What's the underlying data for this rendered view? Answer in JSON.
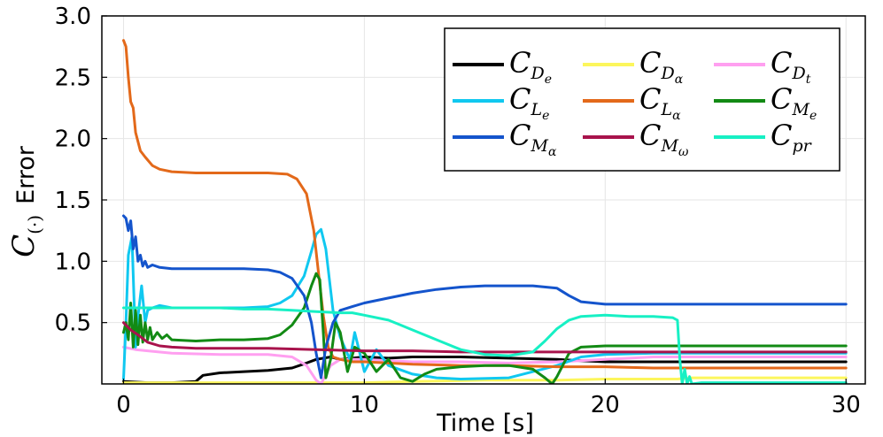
{
  "chart_data": {
    "type": "line",
    "xlabel": "Time [s]",
    "ylabel": "Error",
    "ylabel_symbol": {
      "base": "C",
      "sub": "(·)"
    },
    "xlim": [
      -0.9,
      30.8
    ],
    "ylim": [
      0,
      3.0
    ],
    "xticks": [
      {
        "v": 0,
        "label": "0"
      },
      {
        "v": 10,
        "label": "10"
      },
      {
        "v": 20,
        "label": "20"
      },
      {
        "v": 30,
        "label": "30"
      }
    ],
    "yticks": [
      {
        "v": 0.5,
        "label": "0.5"
      },
      {
        "v": 1.0,
        "label": "1.0"
      },
      {
        "v": 1.5,
        "label": "1.5"
      },
      {
        "v": 2.0,
        "label": "2.0"
      },
      {
        "v": 2.5,
        "label": "2.5"
      },
      {
        "v": 3.0,
        "label": "3.0"
      }
    ],
    "grid": true,
    "legend_position": "top-right",
    "legend_columns": 3,
    "series": [
      {
        "name": "C_De",
        "base": "C",
        "sub": "D",
        "subsub": "e",
        "color": "#000000",
        "points": [
          [
            0,
            0.02
          ],
          [
            1,
            0.01
          ],
          [
            2,
            0.01
          ],
          [
            3,
            0.02
          ],
          [
            3.3,
            0.07
          ],
          [
            4,
            0.09
          ],
          [
            5,
            0.1
          ],
          [
            6,
            0.11
          ],
          [
            7,
            0.13
          ],
          [
            7.6,
            0.17
          ],
          [
            8,
            0.2
          ],
          [
            8.6,
            0.22
          ],
          [
            9,
            0.2
          ],
          [
            10,
            0.22
          ],
          [
            11,
            0.21
          ],
          [
            12,
            0.22
          ],
          [
            14,
            0.22
          ],
          [
            16,
            0.21
          ],
          [
            18,
            0.2
          ],
          [
            19,
            0.19
          ],
          [
            20,
            0.18
          ],
          [
            22,
            0.18
          ],
          [
            25,
            0.18
          ],
          [
            30,
            0.18
          ]
        ]
      },
      {
        "name": "C_Dα",
        "base": "C",
        "sub": "D",
        "subsub": "α",
        "color": "#fcf65c",
        "points": [
          [
            0,
            0.01
          ],
          [
            5,
            0.01
          ],
          [
            10,
            0.01
          ],
          [
            12,
            0.02
          ],
          [
            15,
            0.03
          ],
          [
            18,
            0.03
          ],
          [
            20,
            0.04
          ],
          [
            23,
            0.04
          ],
          [
            23.5,
            0.05
          ],
          [
            25,
            0.05
          ],
          [
            30,
            0.05
          ]
        ]
      },
      {
        "name": "C_Dt",
        "base": "C",
        "sub": "D",
        "subsub": "t",
        "color": "#ff9ff0",
        "points": [
          [
            0,
            0.3
          ],
          [
            0.5,
            0.28
          ],
          [
            1,
            0.27
          ],
          [
            2,
            0.25
          ],
          [
            4,
            0.24
          ],
          [
            6,
            0.24
          ],
          [
            7,
            0.22
          ],
          [
            7.6,
            0.15
          ],
          [
            8,
            0.03
          ],
          [
            8.2,
            0.0
          ],
          [
            8.6,
            0.15
          ],
          [
            9,
            0.2
          ],
          [
            10,
            0.2
          ],
          [
            11,
            0.19
          ],
          [
            12,
            0.18
          ],
          [
            14,
            0.18
          ],
          [
            16,
            0.17
          ],
          [
            18,
            0.18
          ],
          [
            20,
            0.2
          ],
          [
            22,
            0.22
          ],
          [
            25,
            0.22
          ],
          [
            30,
            0.22
          ]
        ]
      },
      {
        "name": "C_Le",
        "base": "C",
        "sub": "L",
        "subsub": "e",
        "color": "#10c8f0",
        "points": [
          [
            0,
            0.04
          ],
          [
            0.1,
            0.5
          ],
          [
            0.2,
            1.05
          ],
          [
            0.35,
            1.2
          ],
          [
            0.5,
            0.3
          ],
          [
            0.6,
            0.55
          ],
          [
            0.75,
            0.8
          ],
          [
            0.9,
            0.5
          ],
          [
            1,
            0.6
          ],
          [
            1.2,
            0.62
          ],
          [
            1.5,
            0.64
          ],
          [
            2,
            0.62
          ],
          [
            3,
            0.62
          ],
          [
            4,
            0.62
          ],
          [
            5,
            0.62
          ],
          [
            6,
            0.63
          ],
          [
            6.5,
            0.66
          ],
          [
            7,
            0.72
          ],
          [
            7.5,
            0.88
          ],
          [
            7.8,
            1.08
          ],
          [
            8,
            1.22
          ],
          [
            8.2,
            1.26
          ],
          [
            8.4,
            1.1
          ],
          [
            8.7,
            0.6
          ],
          [
            9,
            0.38
          ],
          [
            9.4,
            0.2
          ],
          [
            9.6,
            0.42
          ],
          [
            10,
            0.1
          ],
          [
            10.5,
            0.28
          ],
          [
            11,
            0.15
          ],
          [
            12,
            0.08
          ],
          [
            13,
            0.05
          ],
          [
            14,
            0.04
          ],
          [
            16,
            0.05
          ],
          [
            18,
            0.15
          ],
          [
            19,
            0.22
          ],
          [
            20,
            0.24
          ],
          [
            22,
            0.25
          ],
          [
            25,
            0.25
          ],
          [
            30,
            0.25
          ]
        ]
      },
      {
        "name": "C_Lα",
        "base": "C",
        "sub": "L",
        "subsub": "α",
        "color": "#e3691a",
        "points": [
          [
            0,
            2.8
          ],
          [
            0.1,
            2.75
          ],
          [
            0.2,
            2.5
          ],
          [
            0.3,
            2.3
          ],
          [
            0.4,
            2.25
          ],
          [
            0.5,
            2.05
          ],
          [
            0.7,
            1.9
          ],
          [
            0.9,
            1.85
          ],
          [
            1.2,
            1.78
          ],
          [
            1.5,
            1.75
          ],
          [
            2,
            1.73
          ],
          [
            3,
            1.72
          ],
          [
            4,
            1.72
          ],
          [
            5,
            1.72
          ],
          [
            6,
            1.72
          ],
          [
            6.8,
            1.71
          ],
          [
            7.2,
            1.67
          ],
          [
            7.6,
            1.55
          ],
          [
            7.9,
            1.25
          ],
          [
            8.1,
            0.9
          ],
          [
            8.3,
            0.55
          ],
          [
            8.5,
            0.3
          ],
          [
            8.7,
            0.22
          ],
          [
            9,
            0.2
          ],
          [
            9.5,
            0.18
          ],
          [
            10,
            0.18
          ],
          [
            11,
            0.17
          ],
          [
            12,
            0.16
          ],
          [
            14,
            0.15
          ],
          [
            16,
            0.15
          ],
          [
            18,
            0.14
          ],
          [
            20,
            0.14
          ],
          [
            22,
            0.13
          ],
          [
            25,
            0.13
          ],
          [
            30,
            0.13
          ]
        ]
      },
      {
        "name": "C_Me",
        "base": "C",
        "sub": "M",
        "subsub": "e",
        "color": "#128a14",
        "points": [
          [
            0,
            0.42
          ],
          [
            0.1,
            0.5
          ],
          [
            0.2,
            0.36
          ],
          [
            0.3,
            0.66
          ],
          [
            0.4,
            0.3
          ],
          [
            0.5,
            0.6
          ],
          [
            0.6,
            0.32
          ],
          [
            0.7,
            0.56
          ],
          [
            0.8,
            0.34
          ],
          [
            0.9,
            0.5
          ],
          [
            1,
            0.36
          ],
          [
            1.1,
            0.46
          ],
          [
            1.2,
            0.36
          ],
          [
            1.4,
            0.42
          ],
          [
            1.6,
            0.37
          ],
          [
            1.8,
            0.4
          ],
          [
            2,
            0.36
          ],
          [
            3,
            0.35
          ],
          [
            4,
            0.36
          ],
          [
            5,
            0.36
          ],
          [
            6,
            0.37
          ],
          [
            6.5,
            0.4
          ],
          [
            7,
            0.48
          ],
          [
            7.5,
            0.62
          ],
          [
            7.8,
            0.8
          ],
          [
            8,
            0.9
          ],
          [
            8.15,
            0.85
          ],
          [
            8.3,
            0.4
          ],
          [
            8.4,
            0.05
          ],
          [
            8.6,
            0.2
          ],
          [
            8.8,
            0.5
          ],
          [
            9,
            0.42
          ],
          [
            9.3,
            0.1
          ],
          [
            9.6,
            0.3
          ],
          [
            10,
            0.25
          ],
          [
            10.5,
            0.1
          ],
          [
            11,
            0.2
          ],
          [
            11.5,
            0.05
          ],
          [
            12,
            0.02
          ],
          [
            12.5,
            0.08
          ],
          [
            13,
            0.12
          ],
          [
            14,
            0.14
          ],
          [
            15,
            0.15
          ],
          [
            16,
            0.15
          ],
          [
            17,
            0.12
          ],
          [
            17.5,
            0.05
          ],
          [
            17.8,
            0.0
          ],
          [
            18,
            0.06
          ],
          [
            18.5,
            0.25
          ],
          [
            19,
            0.3
          ],
          [
            20,
            0.31
          ],
          [
            22,
            0.31
          ],
          [
            25,
            0.31
          ],
          [
            30,
            0.31
          ]
        ]
      },
      {
        "name": "C_Mα",
        "base": "C",
        "sub": "M",
        "subsub": "α",
        "color": "#1454cc",
        "points": [
          [
            0,
            1.37
          ],
          [
            0.1,
            1.35
          ],
          [
            0.2,
            1.25
          ],
          [
            0.3,
            1.33
          ],
          [
            0.4,
            1.1
          ],
          [
            0.5,
            1.2
          ],
          [
            0.6,
            1.0
          ],
          [
            0.7,
            1.05
          ],
          [
            0.8,
            0.96
          ],
          [
            0.9,
            1.0
          ],
          [
            1,
            0.95
          ],
          [
            1.2,
            0.97
          ],
          [
            1.5,
            0.95
          ],
          [
            2,
            0.94
          ],
          [
            3,
            0.94
          ],
          [
            4,
            0.94
          ],
          [
            5,
            0.94
          ],
          [
            6,
            0.93
          ],
          [
            6.5,
            0.91
          ],
          [
            7,
            0.86
          ],
          [
            7.5,
            0.72
          ],
          [
            7.8,
            0.5
          ],
          [
            8,
            0.25
          ],
          [
            8.2,
            0.05
          ],
          [
            8.4,
            0.3
          ],
          [
            8.7,
            0.5
          ],
          [
            9,
            0.6
          ],
          [
            9.5,
            0.63
          ],
          [
            10,
            0.66
          ],
          [
            11,
            0.7
          ],
          [
            12,
            0.74
          ],
          [
            13,
            0.77
          ],
          [
            14,
            0.79
          ],
          [
            15,
            0.8
          ],
          [
            16,
            0.8
          ],
          [
            17,
            0.8
          ],
          [
            18,
            0.78
          ],
          [
            18.5,
            0.72
          ],
          [
            19,
            0.67
          ],
          [
            20,
            0.65
          ],
          [
            22,
            0.65
          ],
          [
            25,
            0.65
          ],
          [
            30,
            0.65
          ]
        ]
      },
      {
        "name": "C_Mω",
        "base": "C",
        "sub": "M",
        "subsub": "ω",
        "color": "#a8134c",
        "points": [
          [
            0,
            0.5
          ],
          [
            0.3,
            0.44
          ],
          [
            0.6,
            0.4
          ],
          [
            1,
            0.34
          ],
          [
            1.5,
            0.31
          ],
          [
            2,
            0.3
          ],
          [
            3,
            0.29
          ],
          [
            4,
            0.29
          ],
          [
            5,
            0.29
          ],
          [
            6,
            0.29
          ],
          [
            8,
            0.28
          ],
          [
            10,
            0.27
          ],
          [
            12,
            0.27
          ],
          [
            14,
            0.26
          ],
          [
            16,
            0.26
          ],
          [
            18,
            0.26
          ],
          [
            20,
            0.26
          ],
          [
            22,
            0.26
          ],
          [
            25,
            0.26
          ],
          [
            30,
            0.26
          ]
        ]
      },
      {
        "name": "C_pr",
        "base": "C",
        "sub": "pr",
        "subsub": "",
        "color": "#17f0c4",
        "points": [
          [
            0,
            0.62
          ],
          [
            1,
            0.62
          ],
          [
            2,
            0.62
          ],
          [
            3,
            0.62
          ],
          [
            4,
            0.62
          ],
          [
            5,
            0.61
          ],
          [
            6,
            0.61
          ],
          [
            7,
            0.6
          ],
          [
            8,
            0.59
          ],
          [
            9,
            0.58
          ],
          [
            9.5,
            0.58
          ],
          [
            10,
            0.56
          ],
          [
            11,
            0.52
          ],
          [
            11.5,
            0.48
          ],
          [
            12,
            0.44
          ],
          [
            13,
            0.36
          ],
          [
            14,
            0.28
          ],
          [
            15,
            0.24
          ],
          [
            16,
            0.23
          ],
          [
            17,
            0.26
          ],
          [
            17.5,
            0.35
          ],
          [
            18,
            0.45
          ],
          [
            18.5,
            0.52
          ],
          [
            19,
            0.55
          ],
          [
            20,
            0.56
          ],
          [
            21,
            0.55
          ],
          [
            22,
            0.55
          ],
          [
            22.8,
            0.54
          ],
          [
            23,
            0.52
          ],
          [
            23.1,
            0.2
          ],
          [
            23.2,
            0.0
          ],
          [
            23.3,
            0.12
          ],
          [
            23.4,
            0.0
          ],
          [
            23.5,
            0.06
          ],
          [
            23.6,
            0.0
          ],
          [
            24,
            0.01
          ],
          [
            25,
            0.01
          ],
          [
            30,
            0.01
          ]
        ]
      }
    ],
    "legend_order": [
      0,
      1,
      2,
      3,
      4,
      5,
      6,
      7,
      8
    ]
  }
}
